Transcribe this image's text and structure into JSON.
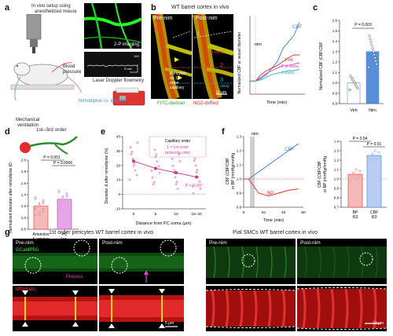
{
  "panels": {
    "a": {
      "label": "a",
      "setup": "In vivo setup using",
      "setup2": "anesthetized mouse",
      "two_photon": "2-P imaging",
      "blood_pressure": "Blood",
      "blood_pressure2": "pressure",
      "mech": "Mechanical",
      "mech2": "ventilation",
      "laser": "Laser Doppler flowmetry",
      "nimo": "Nimodipine i.v. infusion",
      "scale_t": "5 min",
      "scale_v": "100"
    },
    "b": {
      "label": "b",
      "title": "WT barrel cortex in vivo",
      "pre": "Pre-nim",
      "post": "Post-nim",
      "pa": "PA",
      "pericytes": "Pericytes",
      "pericytes2": "on 1st",
      "pericytes3": "order",
      "pericytes4": "capillary",
      "m1": "1",
      "m2": "2",
      "m3": "3",
      "r1": "1",
      "r2": "2",
      "r3": "3",
      "at_soma": "at soma",
      "away": "away",
      "scale": "10 μm",
      "legend_fitc": "FITC-dextran",
      "legend_ng2": "NG2-dsRed",
      "plot_ylabel": "Normalized CBF or vessel diameter",
      "plot_xlabel": "Time (min)",
      "plot_nim": "nim",
      "plot_cbf": "CBF",
      "plot_pa": "1 PA",
      "plot_soma": "2 at soma",
      "plot_away": "3 away"
    },
    "c": {
      "label": "c",
      "ylabel": "Normalized CBF (CBF/CBF",
      "ylabel_sub": "baseline",
      "p": "P = 0.003",
      "veh": "Veh",
      "nim": "Nim"
    },
    "d": {
      "label": "d",
      "title": "1st–3rd order",
      "ylabel": "Normalized diameter after nimodipine (D",
      "p1": "P = 0.001",
      "p2": "P = 0.0006",
      "x1": "Arterioles",
      "x1b": "& arteries",
      "x2": "PC",
      "x2b": "1st–",
      "x2c": "3rd"
    },
    "e": {
      "label": "e",
      "ylabel": "Diameter Δ after nimodipine (%)",
      "xlabel": "Distance from PC soma (μm)",
      "legend_title": "Capillary order",
      "legend1": "1 = 1st order",
      "legend2": "(arteriole side)",
      "p": "P = 0.007"
    },
    "f": {
      "label": "f",
      "ylabel": "CBF (CBF/CBF",
      "ylabel2": "or BP (mmHg/mmHg",
      "nim": "nim",
      "cbf": "CBF",
      "bp": "BP",
      "xlabel": "Time (min)",
      "p1": "P = 0.04",
      "p2": "P = 0.01",
      "bar_x1": "BP",
      "bar_x1b": "t53",
      "bar_x2": "CBF",
      "bar_x2b": "t53",
      "bar_ylabel": "CBF (CBF/CBF",
      "bar_ylabel2": "or BP (mmHg/mmHg"
    },
    "g": {
      "label": "g",
      "title_left": "1st order pericytes WT barrel cortex in vivo",
      "title_right": "Pial SMCs WT barrel cortex in vivo",
      "pre": "Pre-nim",
      "post": "Post-nim",
      "gcamp": "GCaMP5G",
      "process": "Process",
      "tdtomato": "tdTomato",
      "scale_left": "5 μm",
      "scale_right": "10 μm"
    }
  },
  "chart_data": [
    {
      "type": "line",
      "title": "",
      "series": [
        {
          "name": "CBF",
          "values": [
            1.0,
            1.0,
            1.02,
            1.05,
            1.1,
            1.15,
            1.25,
            1.3,
            1.35,
            1.45
          ]
        },
        {
          "name": "1 PA",
          "values": [
            1.0,
            1.0,
            1.05,
            1.08,
            1.1,
            1.12,
            1.15,
            1.18,
            1.2,
            1.2
          ]
        },
        {
          "name": "2 at soma",
          "values": [
            1.0,
            1.0,
            1.03,
            1.06,
            1.08,
            1.1,
            1.12,
            1.12,
            1.13,
            1.14
          ]
        },
        {
          "name": "3 away",
          "values": [
            1.0,
            1.0,
            1.01,
            1.03,
            1.05,
            1.06,
            1.07,
            1.08,
            1.08,
            1.09
          ]
        }
      ],
      "x": [
        0,
        5,
        10,
        15,
        20,
        25,
        30,
        35,
        40,
        45
      ],
      "xlabel": "Time (min)",
      "ylabel": "Normalized CBF or vessel diameter",
      "xlim": [
        0,
        50
      ]
    },
    {
      "type": "bar",
      "categories": [
        "Veh",
        "Nim"
      ],
      "values": [
        1.0,
        1.3
      ],
      "ylim": [
        0.8,
        1.6
      ],
      "ylabel": "Normalized CBF (CBF/CBFbaseline)",
      "annotations": [
        "P = 0.003"
      ],
      "yticks": [
        0.8,
        0.9,
        1.0,
        1.1,
        1.2,
        1.3,
        1.4,
        1.5,
        1.6
      ]
    },
    {
      "type": "bar",
      "categories": [
        "Arterioles & arteries",
        "PC 1st–3rd"
      ],
      "values": [
        1.2,
        1.32
      ],
      "ylim": [
        0.8,
        2.0
      ],
      "yticks": [
        0.8,
        1.0,
        1.2,
        1.4,
        1.6,
        1.8,
        2.0
      ],
      "annotations": [
        "P = 0.001",
        "P = 0.0006"
      ]
    },
    {
      "type": "scatter",
      "xlabel": "Distance from PC soma (μm)",
      "ylabel": "Diameter Δ after nimodipine (%)",
      "categories": [
        "0",
        "5",
        "10",
        "15–20"
      ],
      "mean_values": [
        23,
        18,
        15,
        12
      ],
      "ylim": [
        -10,
        40
      ],
      "yticks": [
        -10,
        0,
        10,
        20,
        30,
        40
      ],
      "annotations": [
        "P = 0.007"
      ]
    },
    {
      "type": "line",
      "xlabel": "Time (min)",
      "xlim": [
        0,
        60
      ],
      "xticks": [
        0,
        20,
        40,
        60
      ],
      "ylim": [
        0.8,
        1.3
      ],
      "yticks": [
        0.8,
        0.9,
        1.0,
        1.1,
        1.2,
        1.3
      ],
      "series": [
        {
          "name": "CBF",
          "values": [
            1.0,
            1.0,
            1.05,
            1.1,
            1.15,
            1.2,
            1.25
          ]
        },
        {
          "name": "BP",
          "values": [
            1.0,
            1.0,
            0.9,
            0.88,
            0.9,
            0.92,
            0.93
          ]
        }
      ],
      "x": [
        0,
        5,
        15,
        25,
        35,
        45,
        55
      ]
    },
    {
      "type": "bar",
      "categories": [
        "BP t53",
        "CBF t53"
      ],
      "values": [
        1.05,
        1.25
      ],
      "ylim": [
        0.7,
        1.4
      ],
      "yticks": [
        0.7,
        0.8,
        0.9,
        1.0,
        1.1,
        1.2,
        1.3,
        1.4
      ],
      "annotations": [
        "P = 0.04",
        "P = 0.01"
      ]
    }
  ]
}
